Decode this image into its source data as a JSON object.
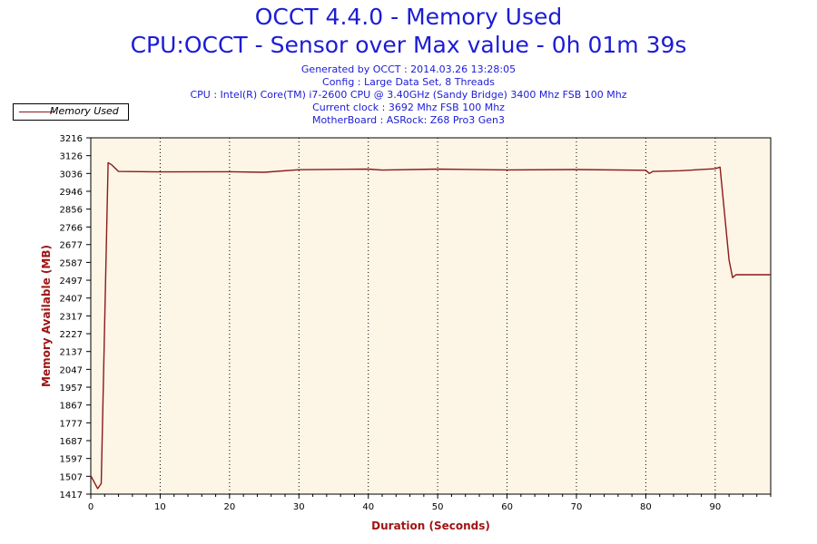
{
  "header": {
    "title_line1": "OCCT 4.4.0 - Memory Used",
    "title_line2": "CPU:OCCT - Sensor over Max value - 0h 01m 39s",
    "info": [
      "Generated by OCCT : 2014.03.26 13:28:05",
      "Config : Large Data Set, 8 Threads",
      "CPU : Intel(R) Core(TM) i7-2600 CPU @ 3.40GHz (Sandy Bridge) 3400 Mhz FSB 100 Mhz",
      "Current clock : 3692 Mhz FSB 100 Mhz",
      "MotherBoard : ASRock: Z68 Pro3 Gen3"
    ]
  },
  "colors": {
    "title": "#1c1cd6",
    "series": "#8b1a1a",
    "plot_background": "#fdf5e6",
    "axis_title": "#a01414"
  },
  "chart_data": {
    "type": "line",
    "title": "OCCT 4.4.0 - Memory Used",
    "xlabel": "Duration (Seconds)",
    "ylabel": "Memory Available (MB)",
    "xlim": [
      0,
      98
    ],
    "ylim": [
      1417,
      3216
    ],
    "x_ticks": [
      0,
      10,
      20,
      30,
      40,
      50,
      60,
      70,
      80,
      90
    ],
    "y_ticks": [
      1417,
      1507,
      1597,
      1687,
      1777,
      1867,
      1957,
      2047,
      2137,
      2227,
      2317,
      2407,
      2497,
      2587,
      2677,
      2766,
      2856,
      2946,
      3036,
      3126,
      3216
    ],
    "grid": "vertical-dotted",
    "legend": "top-left",
    "series": [
      {
        "name": "Memory Used",
        "x": [
          0,
          1,
          1.5,
          2.5,
          3,
          4,
          10,
          20,
          25,
          30,
          40,
          42,
          50,
          60,
          70,
          80,
          80.5,
          81,
          85,
          90,
          90.7,
          92,
          92.5,
          93,
          98
        ],
        "y": [
          1510,
          1445,
          1470,
          3090,
          3080,
          3046,
          3044,
          3045,
          3042,
          3055,
          3058,
          3053,
          3058,
          3054,
          3056,
          3052,
          3036,
          3046,
          3050,
          3060,
          3068,
          2600,
          2510,
          2525,
          2525
        ]
      }
    ]
  }
}
